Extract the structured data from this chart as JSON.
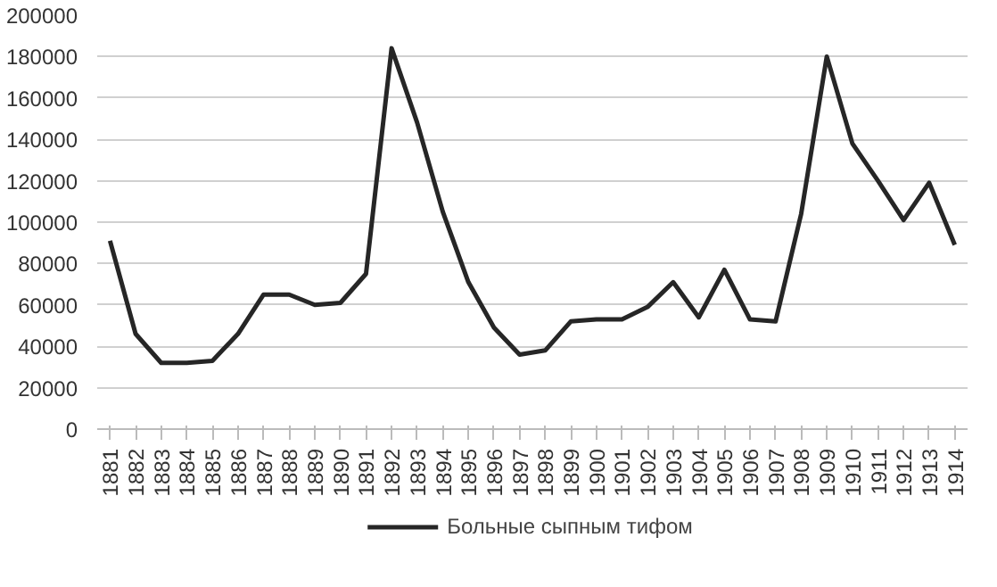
{
  "chart_data": {
    "type": "line",
    "categories": [
      "1881",
      "1882",
      "1883",
      "1884",
      "1885",
      "1886",
      "1887",
      "1888",
      "1889",
      "1890",
      "1891",
      "1892",
      "1893",
      "1894",
      "1895",
      "1896",
      "1897",
      "1898",
      "1899",
      "1900",
      "1901",
      "1902",
      "1903",
      "1904",
      "1905",
      "1906",
      "1907",
      "1908",
      "1909",
      "1910",
      "1911",
      "1912",
      "1913",
      "1914"
    ],
    "series": [
      {
        "name": "Больные сыпным тифом",
        "color": "#262626",
        "values": [
          91000,
          46000,
          32000,
          32000,
          33000,
          46000,
          65000,
          65000,
          60000,
          61000,
          75000,
          184000,
          148000,
          105000,
          71000,
          49000,
          36000,
          38000,
          52000,
          53000,
          53000,
          59000,
          71000,
          54000,
          77000,
          53000,
          52000,
          104000,
          180000,
          138000,
          120000,
          101000,
          119000,
          89000
        ]
      }
    ],
    "ylim": [
      0,
      200000
    ],
    "yticks": [
      0,
      20000,
      40000,
      60000,
      80000,
      100000,
      120000,
      140000,
      160000,
      180000,
      200000
    ],
    "grid": "y",
    "legend": "bottom",
    "marker": "none",
    "line_style": "solid"
  }
}
